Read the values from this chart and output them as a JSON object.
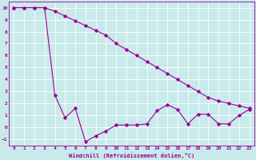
{
  "title": "",
  "xlabel": "Windchill (Refroidissement éolien,°C)",
  "bg_color": "#c8eaea",
  "line_color": "#990099",
  "grid_color": "#ffffff",
  "xlim": [
    -0.5,
    23.5
  ],
  "ylim": [
    -1.5,
    10.5
  ],
  "xticks": [
    0,
    1,
    2,
    3,
    4,
    5,
    6,
    7,
    8,
    9,
    10,
    11,
    12,
    13,
    14,
    15,
    16,
    17,
    18,
    19,
    20,
    21,
    22,
    23
  ],
  "yticks": [
    -1,
    0,
    1,
    2,
    3,
    4,
    5,
    6,
    7,
    8,
    9,
    10
  ],
  "line1_x": [
    0,
    1,
    2,
    3,
    4,
    5,
    6,
    7,
    8,
    9,
    10,
    11,
    12,
    13,
    14,
    15,
    16,
    17,
    18,
    19,
    20,
    21,
    22,
    23
  ],
  "line1_y": [
    10,
    10,
    10,
    10,
    9.7,
    9.3,
    8.9,
    8.5,
    8.1,
    7.7,
    7.0,
    6.5,
    6.0,
    5.5,
    5.0,
    4.5,
    4.0,
    3.5,
    3.0,
    2.5,
    2.2,
    2.0,
    1.8,
    1.6
  ],
  "line2_x": [
    0,
    1,
    2,
    3,
    4,
    5,
    6,
    7,
    8,
    9,
    10,
    11,
    12,
    13,
    14,
    15,
    16,
    17,
    18,
    19,
    20,
    21,
    22,
    23
  ],
  "line2_y": [
    10,
    10,
    10,
    10,
    2.7,
    0.8,
    1.6,
    -1.2,
    -0.7,
    -0.3,
    0.2,
    0.2,
    0.2,
    0.3,
    1.4,
    1.9,
    1.5,
    0.3,
    1.1,
    1.1,
    0.3,
    0.3,
    1.0,
    1.5
  ],
  "marker": "D",
  "markersize": 1.8,
  "linewidth": 0.8,
  "tick_fontsize": 4.5,
  "xlabel_fontsize": 5.0
}
